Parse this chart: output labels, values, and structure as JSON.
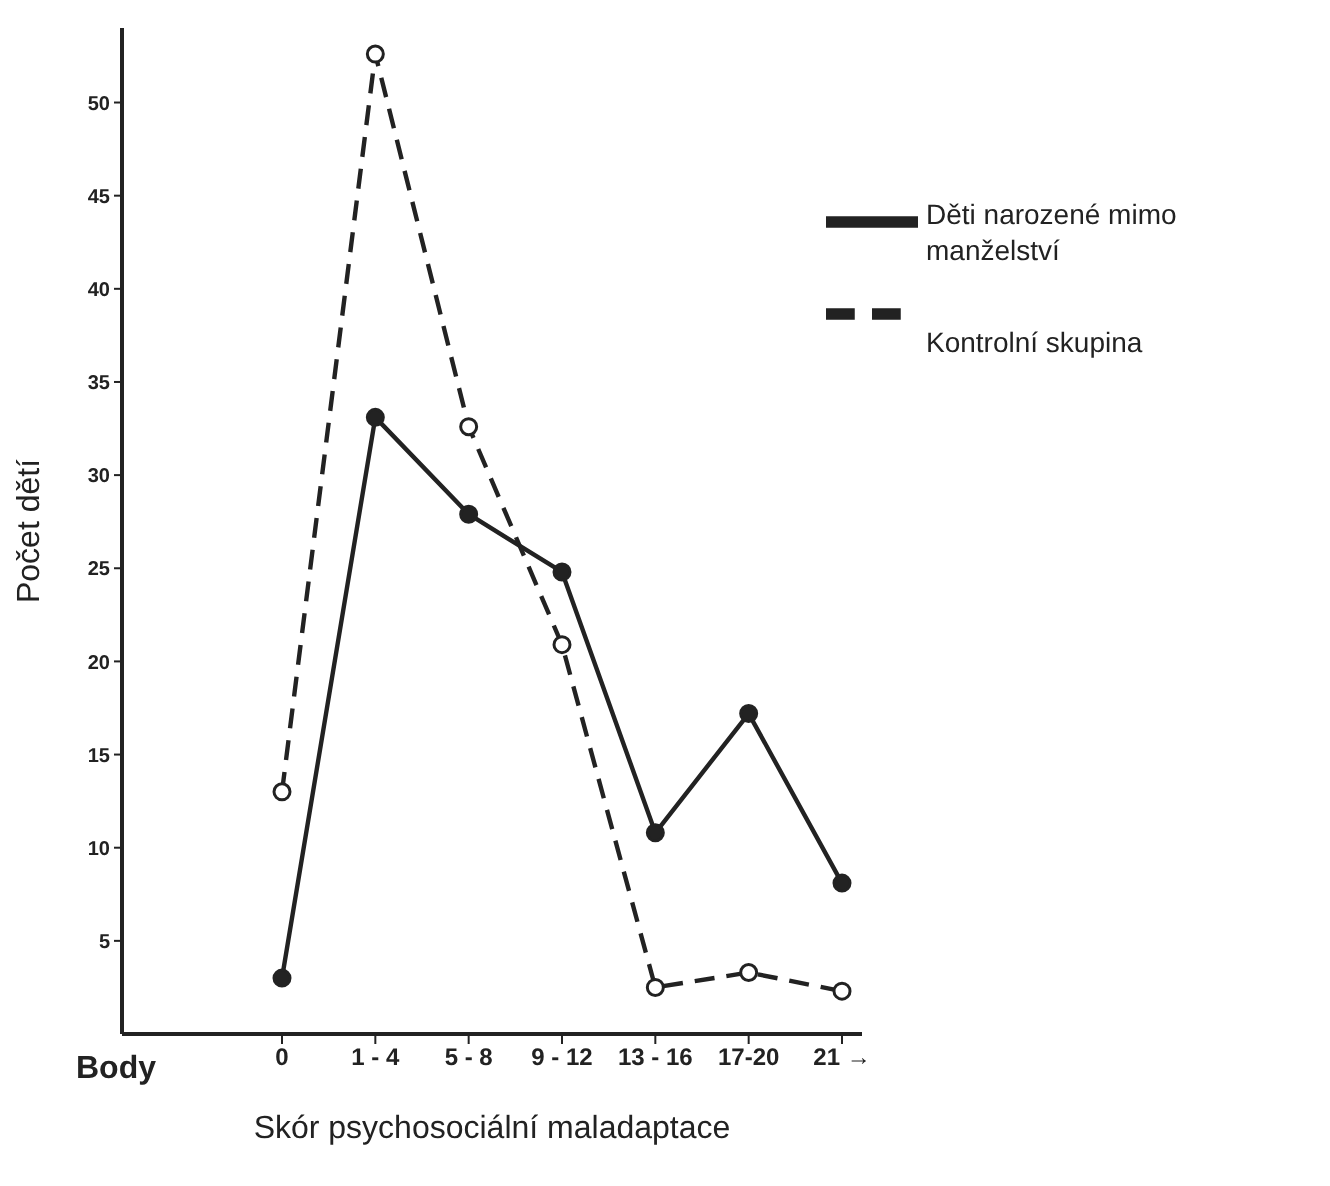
{
  "chart_data": {
    "type": "line",
    "xlabel": "Skór psychosociální maladaptace",
    "ylabel": "Počet dětí",
    "annotations": [
      "Body"
    ],
    "categories": [
      "0",
      "1 - 4",
      "5 - 8",
      "9 - 12",
      "13 - 16",
      "17-20",
      "21 →"
    ],
    "series": [
      {
        "name": "Děti narozené mimo manželství",
        "color": "#222222",
        "line_style": "solid",
        "values": [
          3,
          33.1,
          27.9,
          24.8,
          10.8,
          17.2,
          8.1
        ]
      },
      {
        "name": "Kontrolní skupina",
        "color": "#222222",
        "line_style": "dashed",
        "values": [
          13,
          52.6,
          32.6,
          20.9,
          2.5,
          3.3,
          2.3
        ]
      }
    ],
    "ylim": [
      0,
      54
    ],
    "yticks": [
      5,
      10,
      15,
      20,
      25,
      30,
      35,
      40,
      45,
      50
    ],
    "grid": false,
    "legend": "top right",
    "marker": "circle"
  }
}
